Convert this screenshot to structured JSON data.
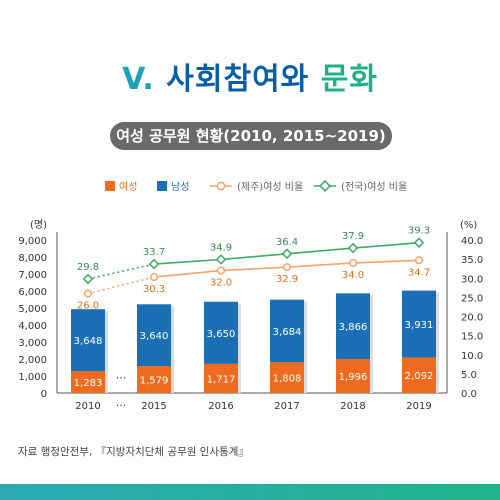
{
  "heading": {
    "roman": "V.",
    "main": "사회참여와",
    "accent": "문화"
  },
  "pill_title": "여성 공무원 현황(2010, 2015~2019)",
  "source": "자료 행정안전부, 『지방자치단체 공무원 인사통계』",
  "chart_data": {
    "type": "bar",
    "categories": [
      "2010",
      "2015",
      "2016",
      "2017",
      "2018",
      "2019"
    ],
    "gap_label": "···",
    "series": [
      {
        "name": "여성",
        "kind": "bar",
        "color": "#ee6b1f",
        "values": [
          1283,
          1579,
          1717,
          1808,
          1996,
          2092
        ]
      },
      {
        "name": "남성",
        "kind": "bar",
        "color": "#1b6fb5",
        "values": [
          3648,
          3640,
          3650,
          3684,
          3866,
          3931
        ]
      },
      {
        "name": "(제주)여성 비율",
        "kind": "line",
        "axis": "right",
        "color": "#f4a46a",
        "values": [
          26.0,
          30.3,
          32.0,
          32.9,
          34.0,
          34.7
        ]
      },
      {
        "name": "(전국)여성 비율",
        "kind": "line",
        "axis": "right",
        "color": "#3eaa62",
        "values": [
          29.8,
          33.7,
          34.9,
          36.4,
          37.9,
          39.3
        ]
      }
    ],
    "ylabel_left": "(명)",
    "ylabel_right": "(%)",
    "ylim_left": [
      0,
      9000
    ],
    "ylim_right": [
      0.0,
      40.0
    ],
    "yticks_left": [
      "0",
      "1,000",
      "2,000",
      "3,000",
      "4,000",
      "5,000",
      "6,000",
      "7,000",
      "8,000",
      "9,000"
    ],
    "yticks_right": [
      "0.0",
      "5.0",
      "10.0",
      "15.0",
      "20.0",
      "25.0",
      "30.0",
      "35.0",
      "40.0"
    ],
    "legend_position": "top-center",
    "grid": false
  }
}
